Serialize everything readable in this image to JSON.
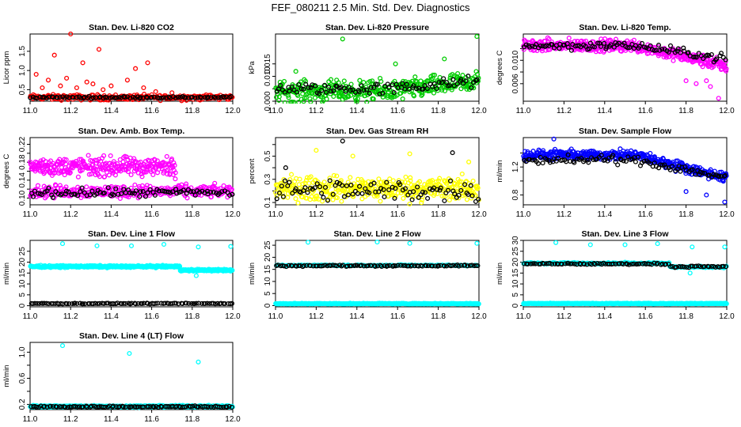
{
  "title": "FEF_080211  2.5 Min. Std. Dev. Diagnostics",
  "colors": {
    "red": "#ff0000",
    "green": "#00cc00",
    "magenta": "#ff00ff",
    "yellow": "#ffff00",
    "blue": "#0000ff",
    "cyan": "#00ffff",
    "black": "#000000"
  },
  "chart_data": [
    {
      "type": "scatter",
      "title": "Stan. Dev. Li-820 CO2",
      "ylabel": "Licor ppm",
      "xlim": [
        11.0,
        12.0
      ],
      "ylim": [
        0.2,
        1.95
      ],
      "xticks": [
        "11.0",
        "11.2",
        "11.4",
        "11.6",
        "11.8",
        "12.0"
      ],
      "yticks": [
        0.5,
        1.0,
        1.5
      ],
      "ytick_labels": [
        "0.5",
        "1.0",
        "1.5"
      ],
      "series": [
        {
          "name": "primary",
          "color": "red",
          "base": 0.3,
          "spread": 0.06,
          "count": 260,
          "outliers": [
            [
              11.03,
              0.9
            ],
            [
              11.06,
              0.55
            ],
            [
              11.09,
              0.75
            ],
            [
              11.12,
              1.4
            ],
            [
              11.15,
              0.6
            ],
            [
              11.18,
              0.8
            ],
            [
              11.2,
              1.95
            ],
            [
              11.23,
              0.55
            ],
            [
              11.26,
              1.2
            ],
            [
              11.28,
              0.7
            ],
            [
              11.31,
              0.65
            ],
            [
              11.34,
              1.55
            ],
            [
              11.36,
              0.5
            ],
            [
              11.4,
              0.6
            ],
            [
              11.48,
              0.75
            ],
            [
              11.52,
              1.05
            ],
            [
              11.56,
              0.55
            ],
            [
              11.58,
              1.2
            ],
            [
              11.62,
              0.45
            ],
            [
              11.7,
              0.42
            ]
          ]
        },
        {
          "name": "reference",
          "color": "black",
          "base": 0.3,
          "spread": 0.02,
          "count": 90,
          "outliers": []
        }
      ]
    },
    {
      "type": "scatter",
      "title": "Stan. Dev. Li-820 Pressure",
      "ylabel": "kPa",
      "xlim": [
        11.0,
        12.0
      ],
      "ylim": [
        0.0,
        0.027
      ],
      "xticks": [
        "11.0",
        "11.2",
        "11.4",
        "11.6",
        "11.8",
        "12.0"
      ],
      "yticks": [
        0.0,
        0.005,
        0.01,
        0.015
      ],
      "ytick_labels": [
        "0.000",
        "",
        "0.010",
        "0.015"
      ],
      "series": [
        {
          "name": "primary",
          "color": "green",
          "base": 0.004,
          "spread": 0.0035,
          "trend": 0.004,
          "count": 380,
          "outliers": [
            [
              11.33,
              0.025
            ],
            [
              11.59,
              0.015
            ],
            [
              11.83,
              0.017
            ],
            [
              11.99,
              0.026
            ],
            [
              11.1,
              0.012
            ]
          ]
        },
        {
          "name": "reference",
          "color": "black",
          "base": 0.005,
          "spread": 0.002,
          "trend": 0.003,
          "count": 90,
          "outliers": []
        }
      ]
    },
    {
      "type": "scatter",
      "title": "Stan. Dev. Li-820 Temp.",
      "ylabel": "degrees C",
      "xlim": [
        11.0,
        12.0
      ],
      "ylim": [
        0.003,
        0.0145
      ],
      "xticks": [
        "11.0",
        "11.2",
        "11.4",
        "11.6",
        "11.8",
        "12.0"
      ],
      "yticks": [
        0.006,
        0.008,
        0.01,
        0.012
      ],
      "ytick_labels": [
        "0.006",
        "",
        "0.010",
        ""
      ],
      "series": [
        {
          "name": "primary",
          "color": "magenta",
          "base": 0.0125,
          "spread": 0.0009,
          "trend": -0.0035,
          "count": 420,
          "outliers": [
            [
              11.85,
              0.006
            ],
            [
              11.92,
              0.0055
            ],
            [
              11.96,
              0.0035
            ],
            [
              11.8,
              0.0065
            ],
            [
              11.9,
              0.0065
            ]
          ]
        },
        {
          "name": "reference",
          "color": "black",
          "base": 0.0125,
          "spread": 0.0006,
          "trend": -0.0022,
          "count": 100,
          "outliers": []
        }
      ]
    },
    {
      "type": "scatter",
      "title": "Stan. Dev. Amb. Box Temp.",
      "ylabel": "degrees C",
      "xlim": [
        11.0,
        12.0
      ],
      "ylim": [
        0.085,
        0.235
      ],
      "xticks": [
        "11.0",
        "11.2",
        "11.4",
        "11.6",
        "11.8",
        "12.0"
      ],
      "yticks": [
        0.1,
        0.12,
        0.14,
        0.16,
        0.18,
        0.2,
        0.22
      ],
      "ytick_labels": [
        "0.10",
        "",
        "0.14",
        "",
        "0.18",
        "",
        "0.22"
      ],
      "series": [
        {
          "name": "primary-upper",
          "color": "magenta",
          "base": 0.17,
          "spread": 0.018,
          "count": 300,
          "xmax": 11.72,
          "outliers": []
        },
        {
          "name": "primary-lower",
          "color": "magenta",
          "base": 0.115,
          "spread": 0.012,
          "count": 300,
          "outliers": []
        },
        {
          "name": "reference",
          "color": "black",
          "base": 0.112,
          "spread": 0.008,
          "count": 90,
          "outliers": []
        }
      ]
    },
    {
      "type": "scatter",
      "title": "Stan. Dev. Gas Stream RH",
      "ylabel": "percent",
      "xlim": [
        11.0,
        12.0
      ],
      "ylim": [
        0.08,
        0.66
      ],
      "xticks": [
        "11.0",
        "11.2",
        "11.4",
        "11.6",
        "11.8",
        "12.0"
      ],
      "yticks": [
        0.1,
        0.2,
        0.3,
        0.4,
        0.5,
        0.6
      ],
      "ytick_labels": [
        "0.1",
        "",
        "0.3",
        "",
        "0.5",
        ""
      ],
      "series": [
        {
          "name": "primary",
          "color": "yellow",
          "base": 0.22,
          "spread": 0.09,
          "count": 380,
          "outliers": [
            [
              11.2,
              0.55
            ],
            [
              11.38,
              0.5
            ],
            [
              11.66,
              0.52
            ],
            [
              11.95,
              0.45
            ]
          ]
        },
        {
          "name": "reference",
          "color": "black",
          "base": 0.2,
          "spread": 0.08,
          "count": 90,
          "outliers": [
            [
              11.33,
              0.63
            ],
            [
              11.87,
              0.53
            ],
            [
              11.05,
              0.4
            ]
          ]
        }
      ]
    },
    {
      "type": "scatter",
      "title": "Stan. Dev. Sample Flow",
      "ylabel": "ml/min",
      "xlim": [
        11.0,
        12.0
      ],
      "ylim": [
        0.66,
        1.62
      ],
      "xticks": [
        "11.0",
        "11.2",
        "11.4",
        "11.6",
        "11.8",
        "12.0"
      ],
      "yticks": [
        0.8,
        1.0,
        1.2,
        1.4
      ],
      "ytick_labels": [
        "0.8",
        "",
        "1.2",
        ""
      ],
      "series": [
        {
          "name": "primary",
          "color": "blue",
          "base": 1.37,
          "spread": 0.06,
          "trend": -0.33,
          "count": 400,
          "outliers": [
            [
              11.15,
              1.6
            ],
            [
              11.99,
              0.7
            ],
            [
              11.8,
              0.85
            ],
            [
              11.9,
              0.8
            ]
          ]
        },
        {
          "name": "reference",
          "color": "black",
          "base": 1.3,
          "spread": 0.05,
          "trend": -0.25,
          "count": 100,
          "outliers": []
        }
      ]
    },
    {
      "type": "scatter",
      "title": "Stan. Dev. Line 1 Flow",
      "ylabel": "ml/min",
      "xlim": [
        11.0,
        12.0
      ],
      "ylim": [
        -0.5,
        30
      ],
      "xticks": [
        "11.0",
        "11.2",
        "11.4",
        "11.6",
        "11.8",
        "12.0"
      ],
      "yticks": [
        0,
        5,
        10,
        15,
        20,
        25
      ],
      "ytick_labels": [
        "0",
        "5",
        "10",
        "15",
        "20",
        "25"
      ],
      "series": [
        {
          "name": "primary",
          "color": "cyan",
          "base": 18.0,
          "spread": 0.4,
          "step_at": 11.74,
          "step_to": 16.3,
          "count": 420,
          "outliers": [
            [
              11.16,
              28.5
            ],
            [
              11.33,
              27.5
            ],
            [
              11.5,
              27.5
            ],
            [
              11.66,
              28.2
            ],
            [
              11.83,
              27.0
            ],
            [
              11.99,
              27.2
            ],
            [
              11.82,
              13.8
            ]
          ]
        },
        {
          "name": "reference",
          "color": "black",
          "base": 1.0,
          "spread": 0.15,
          "count": 100,
          "outliers": []
        }
      ]
    },
    {
      "type": "scatter",
      "title": "Stan. Dev. Line 2 Flow",
      "ylabel": "ml/min",
      "xlim": [
        11.0,
        12.0
      ],
      "ylim": [
        -0.5,
        27
      ],
      "xticks": [
        "11.0",
        "11.2",
        "11.4",
        "11.6",
        "11.8",
        "12.0"
      ],
      "yticks": [
        0,
        5,
        10,
        15,
        20,
        25
      ],
      "ytick_labels": [
        "0",
        "5",
        "10",
        "15",
        "20",
        "25"
      ],
      "series": [
        {
          "name": "primary-top",
          "color": "cyan",
          "base": 16.7,
          "spread": 0.2,
          "count": 120,
          "outliers": []
        },
        {
          "name": "primary-bottom",
          "color": "cyan",
          "base": 0.8,
          "spread": 0.15,
          "count": 420,
          "outliers": [
            [
              11.16,
              26.2
            ],
            [
              11.5,
              26.3
            ],
            [
              11.66,
              25.8
            ],
            [
              11.99,
              25.8
            ]
          ]
        },
        {
          "name": "reference",
          "color": "black",
          "base": 16.5,
          "spread": 0.25,
          "count": 100,
          "outliers": []
        }
      ]
    },
    {
      "type": "scatter",
      "title": "Stan. Dev. Line 3 Flow",
      "ylabel": "ml/min",
      "xlim": [
        11.0,
        12.0
      ],
      "ylim": [
        -0.5,
        30
      ],
      "xticks": [
        "11.0",
        "11.2",
        "11.4",
        "11.6",
        "11.8",
        "12.0"
      ],
      "yticks": [
        0,
        5,
        10,
        15,
        20,
        25,
        30
      ],
      "ytick_labels": [
        "0",
        "5",
        "10",
        "15",
        "20",
        "25",
        "30"
      ],
      "series": [
        {
          "name": "primary-top",
          "color": "cyan",
          "base": 19.5,
          "spread": 0.3,
          "step_at": 11.72,
          "step_to": 17.8,
          "count": 260,
          "outliers": [
            [
              11.16,
              29.0
            ],
            [
              11.33,
              28.0
            ],
            [
              11.5,
              28.0
            ],
            [
              11.66,
              28.5
            ],
            [
              11.83,
              27.0
            ],
            [
              11.99,
              27.0
            ],
            [
              11.82,
              15.0
            ]
          ]
        },
        {
          "name": "primary-bottom",
          "color": "cyan",
          "base": 1.0,
          "spread": 0.15,
          "count": 420,
          "outliers": []
        },
        {
          "name": "reference",
          "color": "black",
          "base": 19.2,
          "spread": 0.3,
          "step_at": 11.72,
          "step_to": 17.9,
          "count": 100,
          "outliers": []
        }
      ]
    },
    {
      "type": "scatter",
      "title": "Stan. Dev. Line 4 (LT) Flow",
      "ylabel": "ml/min",
      "xlim": [
        11.0,
        12.0
      ],
      "ylim": [
        0.12,
        1.15
      ],
      "xticks": [
        "11.0",
        "11.2",
        "11.4",
        "11.6",
        "11.8",
        "12.0"
      ],
      "yticks": [
        0.2,
        0.4,
        0.6,
        0.8,
        1.0
      ],
      "ytick_labels": [
        "0.2",
        "",
        "0.6",
        "",
        "1.0"
      ],
      "series": [
        {
          "name": "primary",
          "color": "cyan",
          "base": 0.17,
          "spread": 0.012,
          "count": 420,
          "outliers": [
            [
              11.16,
              1.1
            ],
            [
              11.49,
              0.98
            ],
            [
              11.83,
              0.85
            ]
          ]
        },
        {
          "name": "reference",
          "color": "black",
          "base": 0.165,
          "spread": 0.01,
          "count": 100,
          "outliers": []
        }
      ]
    }
  ]
}
